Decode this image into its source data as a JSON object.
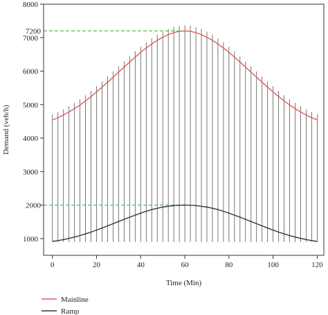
{
  "chart_data": {
    "type": "line",
    "xlabel": "Time (Min)",
    "ylabel": "Demand (veh/h)",
    "xlim": [
      -4,
      123
    ],
    "ylim": [
      500,
      8000
    ],
    "xticks": [
      0,
      20,
      40,
      60,
      80,
      100,
      120
    ],
    "yticks": [
      1000,
      2000,
      3000,
      4000,
      5000,
      6000,
      7000,
      8000
    ],
    "x": [
      0,
      2.5,
      5,
      7.5,
      10,
      12.5,
      15,
      17.5,
      20,
      22.5,
      25,
      27.5,
      30,
      32.5,
      35,
      37.5,
      40,
      42.5,
      45,
      47.5,
      50,
      52.5,
      55,
      57.5,
      60,
      62.5,
      65,
      67.5,
      70,
      72.5,
      75,
      77.5,
      80,
      82.5,
      85,
      87.5,
      90,
      92.5,
      95,
      97.5,
      100,
      102.5,
      105,
      107.5,
      110,
      112.5,
      115,
      117.5,
      120
    ],
    "series": [
      {
        "name": "Mainline",
        "color": "#e05a5a",
        "values": [
          4540,
          4610,
          4690,
          4780,
          4880,
          4990,
          5110,
          5240,
          5380,
          5520,
          5670,
          5820,
          5970,
          6120,
          6270,
          6420,
          6560,
          6690,
          6810,
          6920,
          7010,
          7090,
          7150,
          7190,
          7200,
          7190,
          7150,
          7090,
          7010,
          6920,
          6810,
          6690,
          6560,
          6420,
          6270,
          6120,
          5970,
          5820,
          5670,
          5520,
          5380,
          5240,
          5110,
          4990,
          4880,
          4780,
          4690,
          4610,
          4540
        ]
      },
      {
        "name": "Ramp",
        "color": "#333333",
        "values": [
          915,
          940,
          970,
          1005,
          1045,
          1090,
          1140,
          1195,
          1255,
          1315,
          1380,
          1445,
          1510,
          1575,
          1640,
          1700,
          1760,
          1815,
          1865,
          1905,
          1940,
          1965,
          1985,
          1995,
          2000,
          1995,
          1985,
          1965,
          1940,
          1905,
          1865,
          1815,
          1760,
          1700,
          1640,
          1575,
          1510,
          1445,
          1380,
          1315,
          1255,
          1195,
          1140,
          1090,
          1045,
          1005,
          970,
          940,
          915
        ]
      }
    ],
    "error_bars": {
      "x_step": 2.5,
      "low": 900,
      "high_offset": 170
    },
    "annotations": [
      {
        "label": "7200",
        "value": 7200,
        "color": "#3aaa3a",
        "style": "dashed"
      },
      {
        "label": "2000",
        "value": 2000,
        "color": "#3aaa3a",
        "style": "dashed"
      }
    ],
    "legend": {
      "placement": "bottom-left"
    },
    "grid": false
  }
}
